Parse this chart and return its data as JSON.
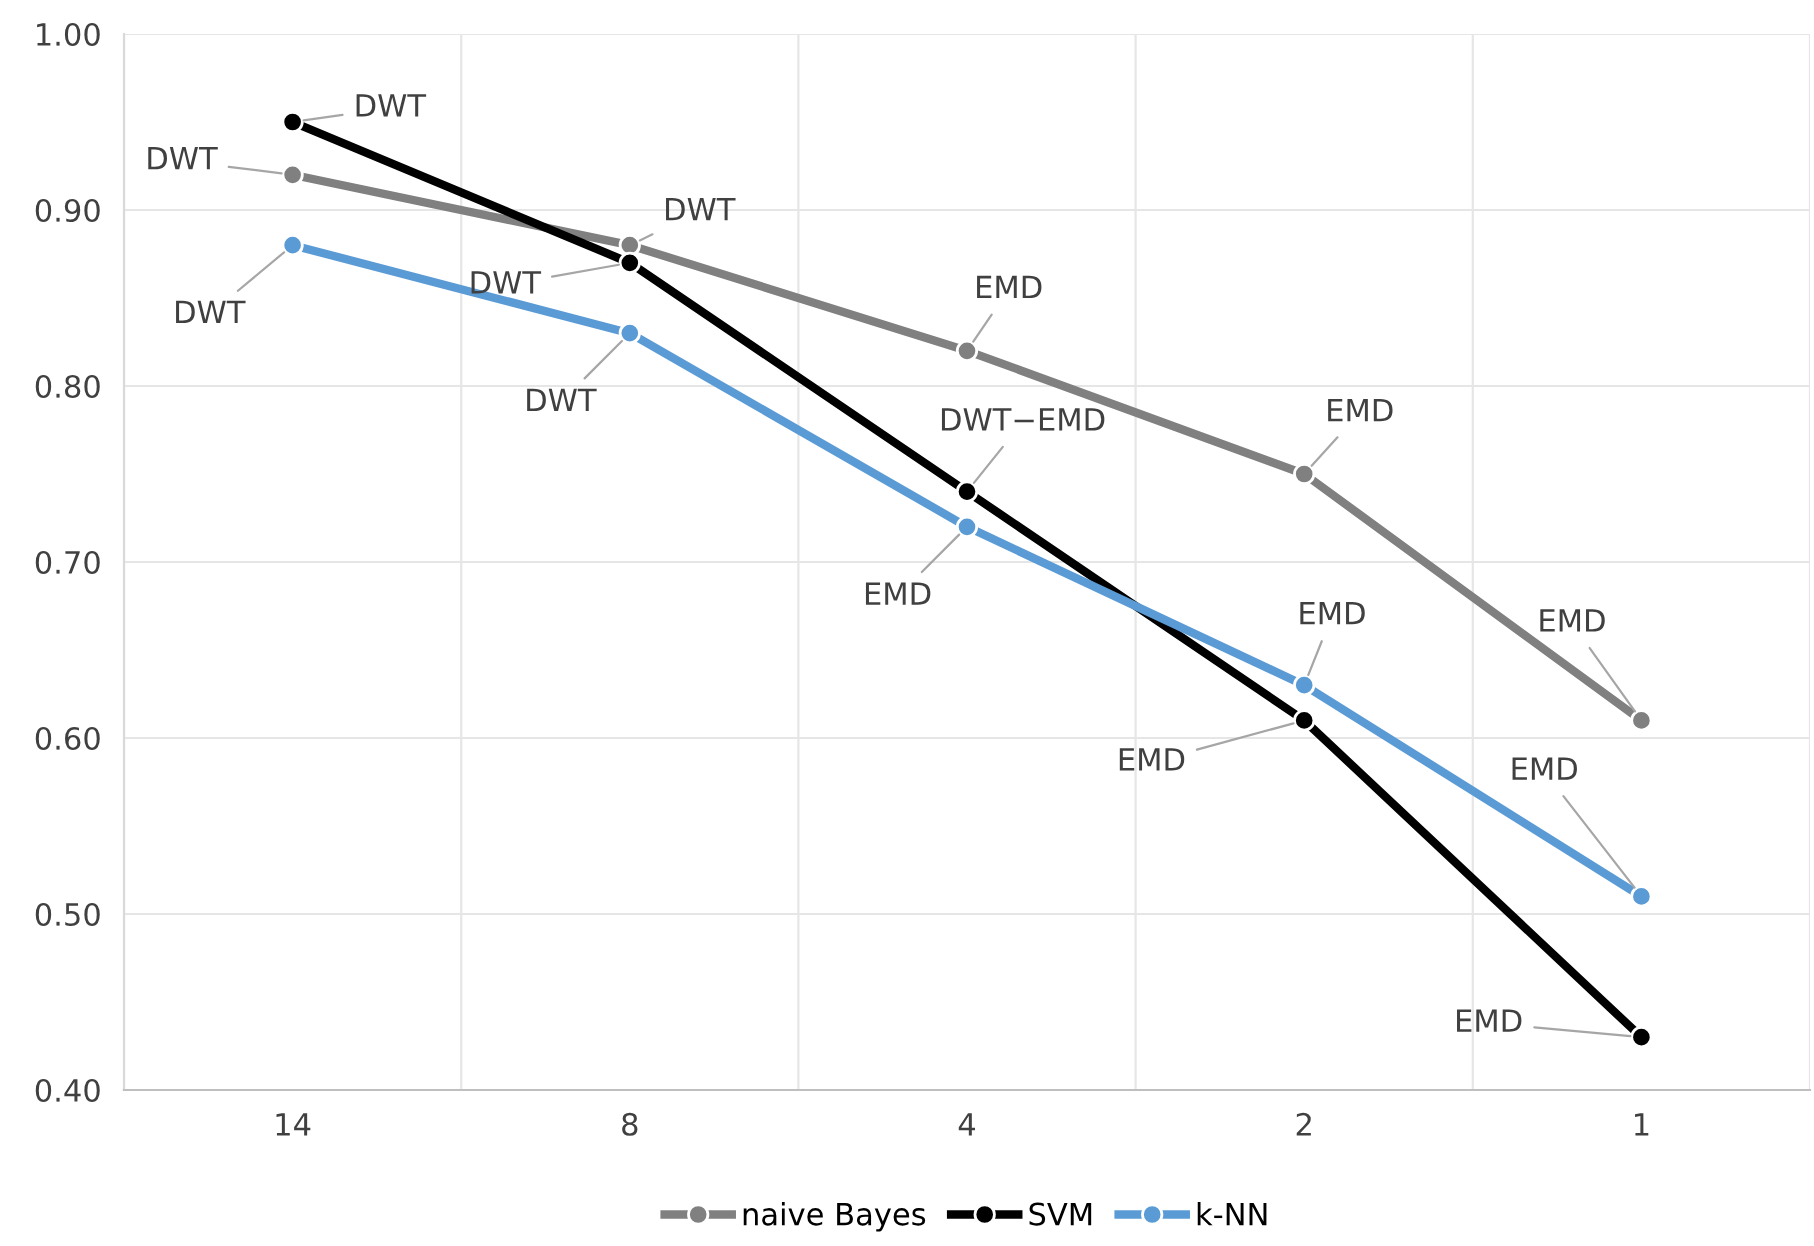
{
  "chart_data": {
    "type": "line",
    "categories": [
      "14",
      "8",
      "4",
      "2",
      "1"
    ],
    "series": [
      {
        "name": "naive Bayes",
        "color": "#808080",
        "values": [
          0.92,
          0.88,
          0.82,
          0.75,
          0.61
        ]
      },
      {
        "name": "SVM",
        "color": "#000000",
        "values": [
          0.95,
          0.87,
          0.74,
          0.61,
          0.43
        ]
      },
      {
        "name": "k-NN",
        "color": "#5b9bd5",
        "values": [
          0.88,
          0.83,
          0.72,
          0.63,
          0.51
        ]
      }
    ],
    "ylim": [
      0.4,
      1.0
    ],
    "yticks": [
      {
        "value": 0.4,
        "label": "0.40"
      },
      {
        "value": 0.5,
        "label": "0.50"
      },
      {
        "value": 0.6,
        "label": "0.60"
      },
      {
        "value": 0.7,
        "label": "0.70"
      },
      {
        "value": 0.8,
        "label": "0.80"
      },
      {
        "value": 0.9,
        "label": "0.90"
      },
      {
        "value": 1.0,
        "label": "1.00"
      }
    ],
    "grid": true,
    "legend": "bottom",
    "marker": "circle",
    "line_style": "solid",
    "annotations": [
      {
        "text": "DWT",
        "x": "14",
        "y": 0.95
      },
      {
        "text": "DWT",
        "x": "14",
        "y": 0.92
      },
      {
        "text": "DWT",
        "x": "14",
        "y": 0.88
      },
      {
        "text": "DWT",
        "x": "8",
        "y": 0.88
      },
      {
        "text": "DWT",
        "x": "8",
        "y": 0.87
      },
      {
        "text": "DWT",
        "x": "8",
        "y": 0.83
      },
      {
        "text": "EMD",
        "x": "4",
        "y": 0.82
      },
      {
        "text": "DWT−EMD",
        "x": "4",
        "y": 0.74
      },
      {
        "text": "EMD",
        "x": "4",
        "y": 0.72
      },
      {
        "text": "EMD",
        "x": "2",
        "y": 0.75
      },
      {
        "text": "EMD",
        "x": "2",
        "y": 0.63
      },
      {
        "text": "EMD",
        "x": "2",
        "y": 0.61
      },
      {
        "text": "EMD",
        "x": "1",
        "y": 0.61
      },
      {
        "text": "EMD",
        "x": "1",
        "y": 0.51
      },
      {
        "text": "EMD",
        "x": "1",
        "y": 0.43
      }
    ]
  }
}
